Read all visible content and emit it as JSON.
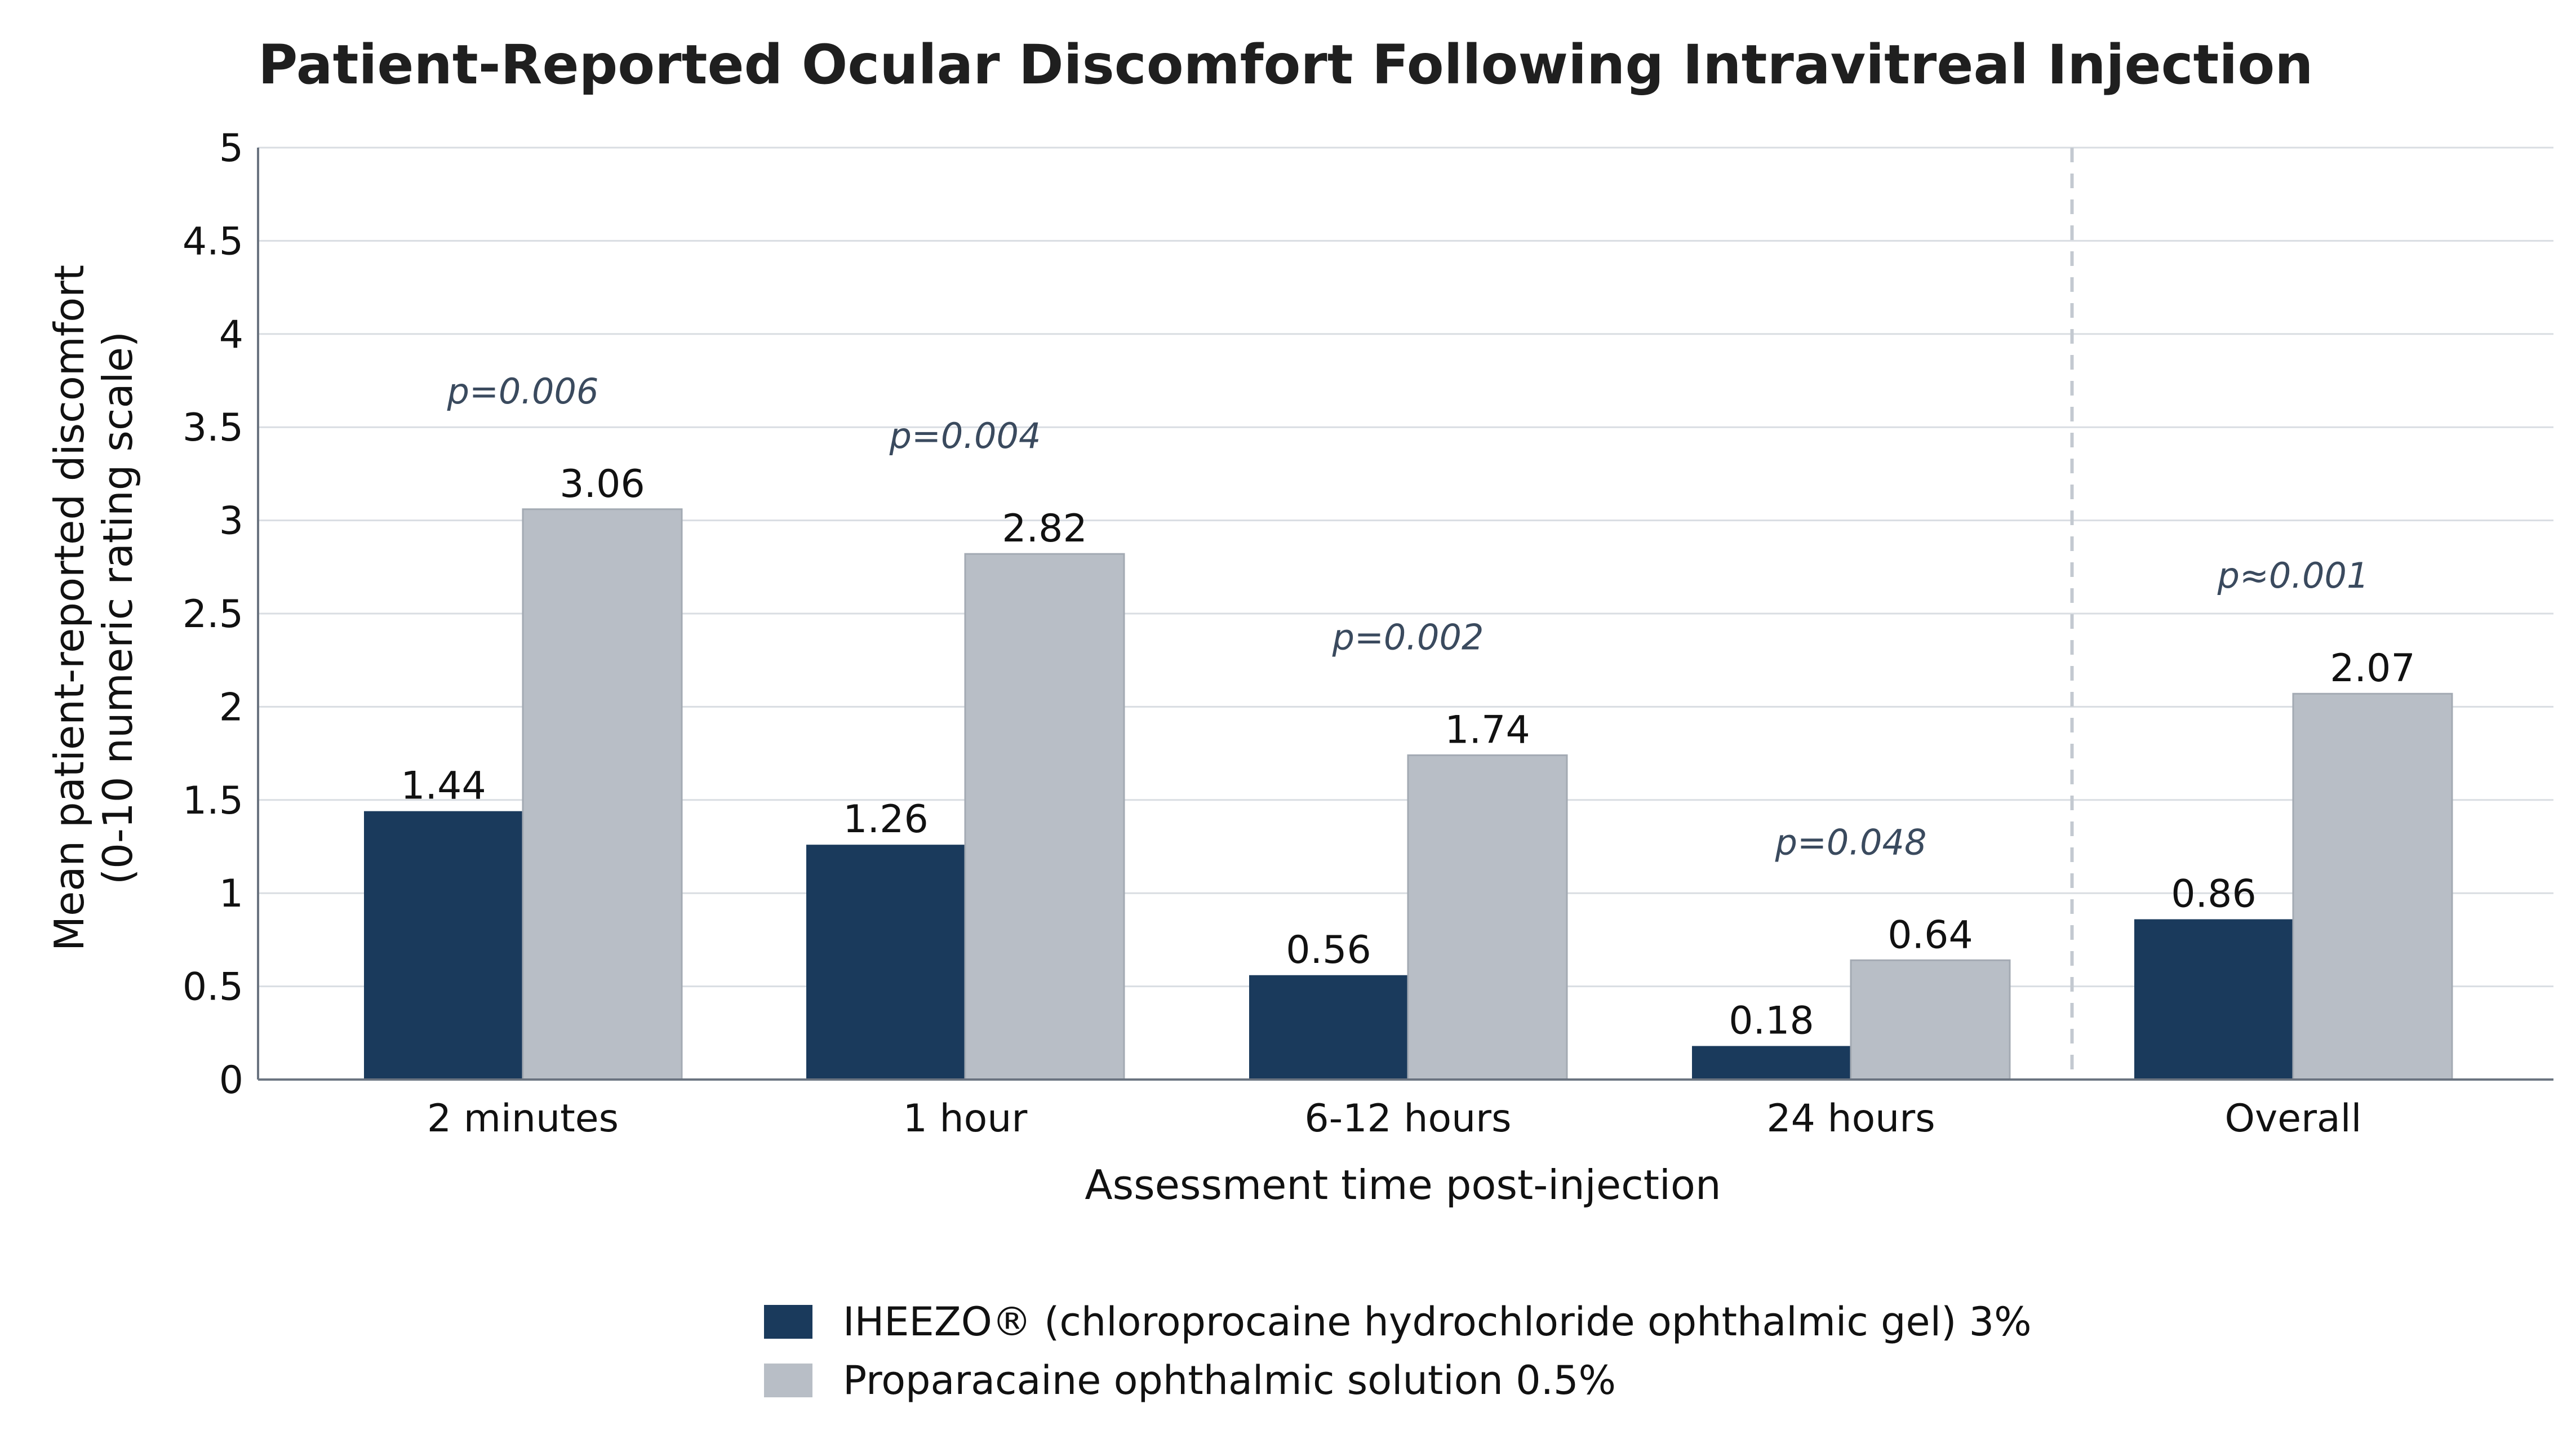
{
  "chart_data": {
    "type": "bar",
    "title": "Patient-Reported Ocular Discomfort Following Intravitreal Injection",
    "xlabel": "Assessment time post-injection",
    "ylabel_line1": "Mean patient-reported discomfort",
    "ylabel_line2": "(0-10 numeric rating scale)",
    "ylim": [
      0,
      5
    ],
    "yticks": [
      "0",
      "0.5",
      "1",
      "1.5",
      "2",
      "2.5",
      "3",
      "3.5",
      "4",
      "4.5",
      "5"
    ],
    "ytick_values": [
      0,
      0.5,
      1,
      1.5,
      2,
      2.5,
      3,
      3.5,
      4,
      4.5,
      5
    ],
    "grid": "horizontal",
    "categories": [
      "2 minutes",
      "1 hour",
      "6-12 hours",
      "24 hours",
      "Overall"
    ],
    "series": [
      {
        "name": "IHEEZO® (chloroprocaine hydrochloride ophthalmic gel) 3%",
        "color": "#1a3a5c",
        "values": [
          1.44,
          1.26,
          0.56,
          0.18,
          0.86
        ],
        "value_labels": [
          "1.44",
          "1.26",
          "0.56",
          "0.18",
          "0.86"
        ]
      },
      {
        "name": "Proparacaine ophthalmic solution 0.5%",
        "color": "#b8bec6",
        "values": [
          3.06,
          2.82,
          1.74,
          0.64,
          2.07
        ],
        "value_labels": [
          "3.06",
          "2.82",
          "1.74",
          "0.64",
          "2.07"
        ]
      }
    ],
    "p_values": [
      "p=0.006",
      "p=0.004",
      "p=0.002",
      "p=0.048",
      "p≈0.001"
    ],
    "separator": "dashed vertical line between 24 hours and Overall",
    "legend_position": "bottom-center"
  },
  "colors": {
    "series_1": "#1a3a5c",
    "series_2": "#b8bec6",
    "grid": "#d9dde2",
    "axis": "#6b7480",
    "pvalue_text": "#3a4a5e",
    "separator": "#c3c9d0"
  }
}
